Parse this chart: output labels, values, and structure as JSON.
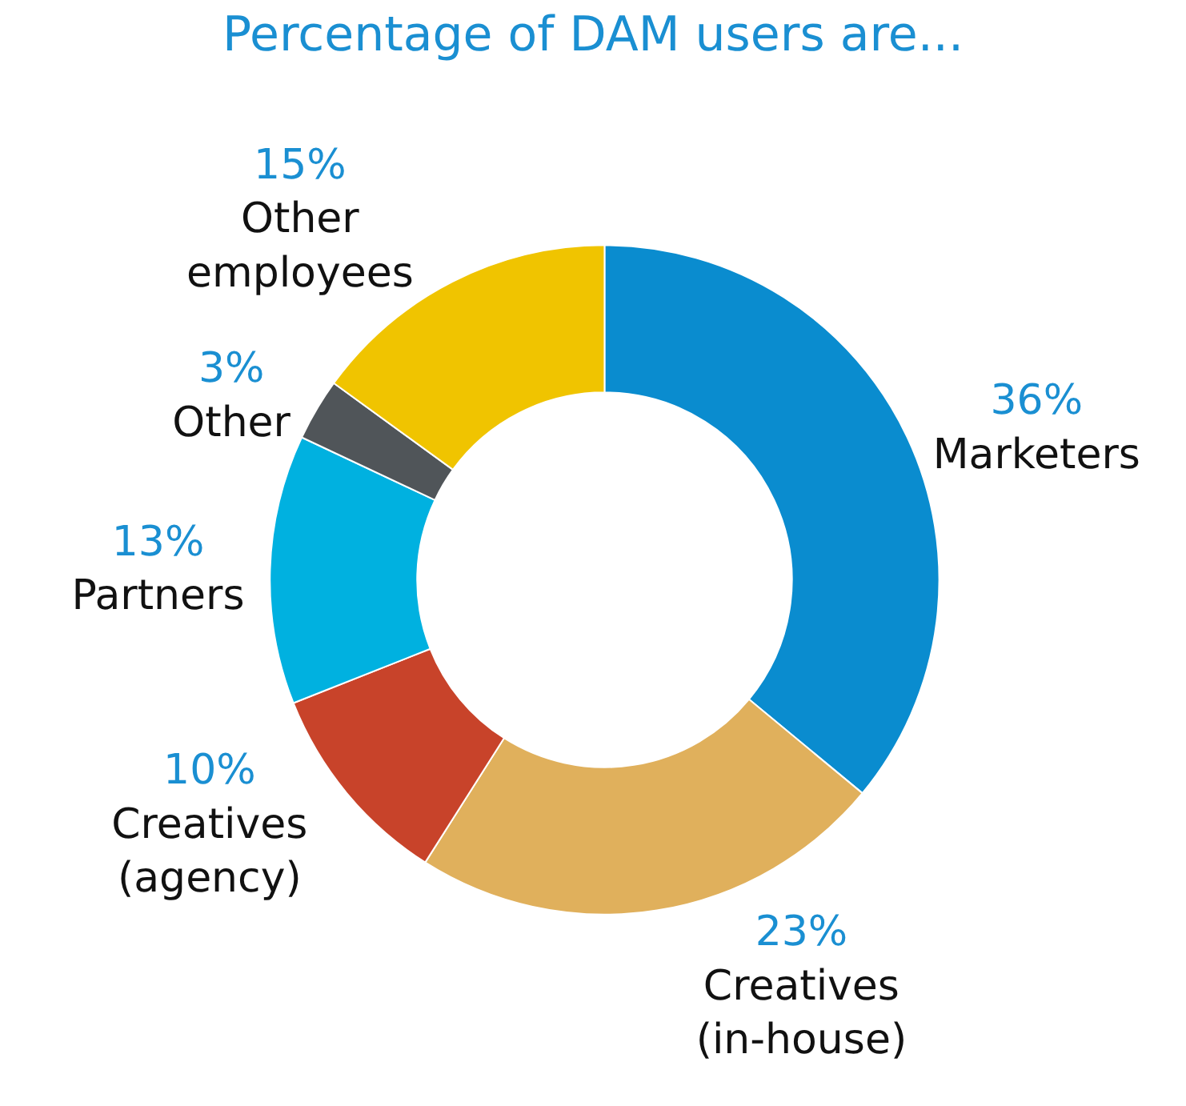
{
  "chart_data": {
    "type": "donut",
    "title": "Percentage of DAM users are...",
    "categories": [
      "Marketers",
      "Creatives (in-house)",
      "Creatives (agency)",
      "Partners",
      "Other",
      "Other employees"
    ],
    "values": [
      36,
      23,
      10,
      13,
      3,
      15
    ],
    "value_labels": [
      "36%",
      "23%",
      "10%",
      "13%",
      "3%",
      "15%"
    ],
    "colors": [
      "#0a8ccf",
      "#e0b05c",
      "#c8432a",
      "#00b1e0",
      "#505559",
      "#f0c400"
    ],
    "legend": false
  }
}
